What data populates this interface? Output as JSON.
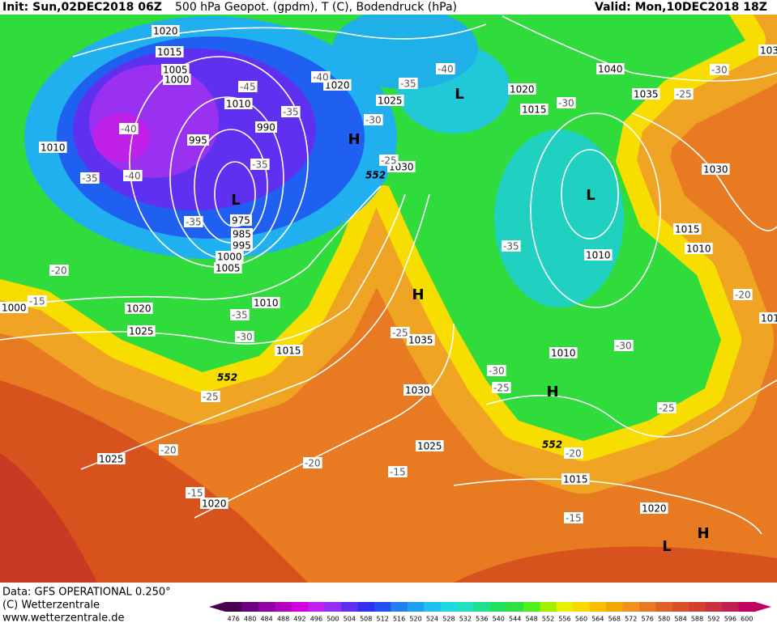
{
  "header": {
    "init": "Init: Sun,02DEC2018 06Z",
    "title": "500 hPa Geopot. (gpdm), T (C), Bodendruck (hPa)",
    "valid": "Valid: Mon,10DEC2018 18Z"
  },
  "footer": {
    "data": "Data: GFS OPERATIONAL 0.250°",
    "copyright": "(C) Wetterzentrale",
    "url": "www.wetterzentrale.de"
  },
  "colorbar": [
    476,
    480,
    484,
    488,
    492,
    496,
    500,
    504,
    508,
    512,
    516,
    520,
    524,
    528,
    532,
    536,
    540,
    544,
    548,
    552,
    556,
    560,
    564,
    568,
    572,
    576,
    580,
    584,
    588,
    592,
    596,
    600
  ],
  "isobar_labels": [
    "1020",
    "1015",
    "1005",
    "1000",
    "1010",
    "1020",
    "1025",
    "995",
    "990",
    "1030",
    "975",
    "985",
    "995",
    "1000",
    "1005",
    "1010",
    "1040",
    "1020",
    "1015",
    "1035",
    "1030",
    "1015",
    "1010",
    "1010",
    "1010",
    "1020",
    "1025",
    "1015",
    "1035",
    "1030",
    "1010",
    "1025",
    "1025",
    "1020",
    "1015",
    "1020",
    "1000",
    "103",
    "101"
  ],
  "temperature_labels": [
    "-45",
    "-40",
    "-40",
    "-35",
    "-30",
    "-35",
    "-40",
    "-40",
    "-35",
    "-35",
    "-35",
    "-25",
    "-30",
    "-25",
    "-30",
    "-35",
    "-20",
    "-15",
    "-35",
    "-30",
    "-25",
    "-30",
    "-25",
    "-25",
    "-20",
    "-20",
    "-15",
    "-15",
    "-20",
    "-15",
    "-30",
    "-20",
    "-25"
  ],
  "contour_labels": [
    "552",
    "552",
    "552"
  ],
  "pressure_centers": [
    "L",
    "L",
    "L",
    "H",
    "H",
    "H",
    "H",
    "L"
  ]
}
